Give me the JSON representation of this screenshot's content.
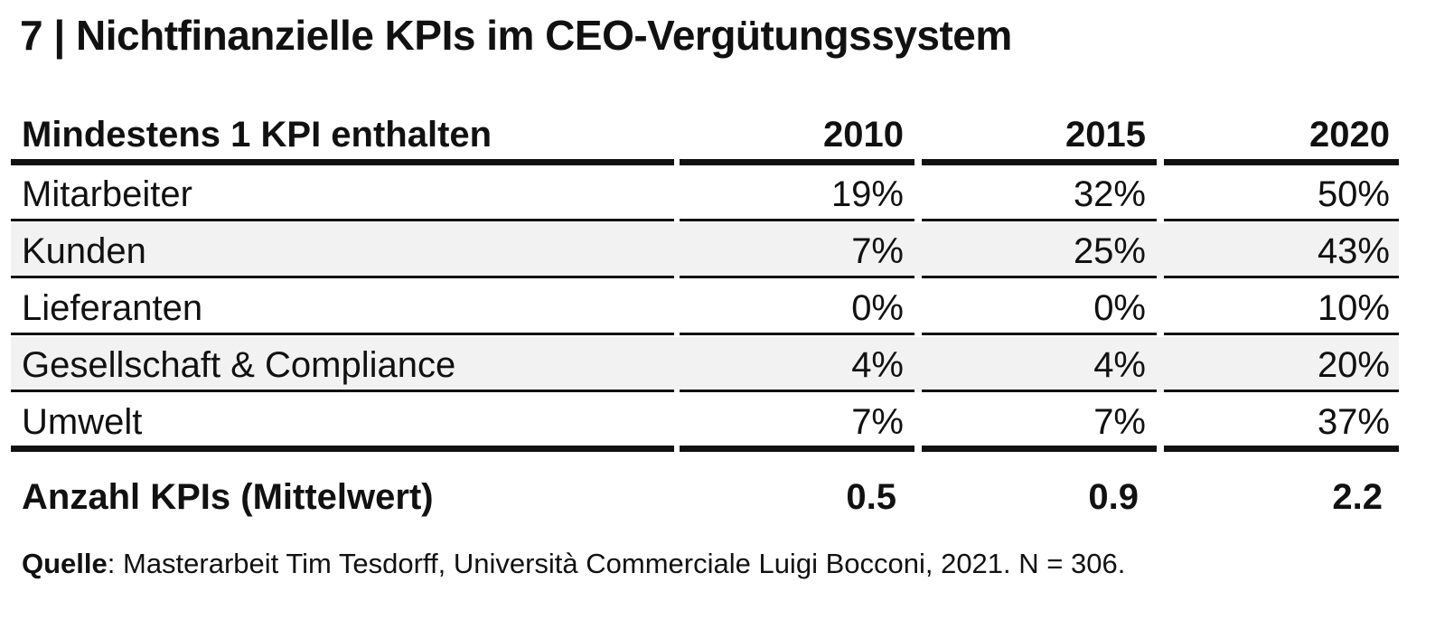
{
  "title": "7 | Nichtfinanzielle KPIs im CEO-Vergütungssystem",
  "chart_data": {
    "type": "table",
    "title": "7 | Nichtfinanzielle KPIs im CEO-Vergütungssystem",
    "row_header": "Mindestens 1 KPI enthalten",
    "columns": [
      "2010",
      "2015",
      "2020"
    ],
    "rows": [
      {
        "label": "Mitarbeiter",
        "values": [
          "19%",
          "32%",
          "50%"
        ]
      },
      {
        "label": "Kunden",
        "values": [
          "7%",
          "25%",
          "43%"
        ]
      },
      {
        "label": "Lieferanten",
        "values": [
          "0%",
          "0%",
          "10%"
        ]
      },
      {
        "label": "Gesellschaft & Compliance",
        "values": [
          "4%",
          "4%",
          "20%"
        ]
      },
      {
        "label": "Umwelt",
        "values": [
          "7%",
          "7%",
          "37%"
        ]
      }
    ],
    "summary": {
      "label": "Anzahl KPIs (Mittelwert)",
      "values": [
        "0.5",
        "0.9",
        "2.2"
      ]
    },
    "shaded_rows": [
      1,
      3
    ],
    "colors": {
      "text": "#111111",
      "rule": "#111111",
      "shade": "#f2f2f2"
    }
  },
  "source": {
    "label": "Quelle",
    "text": ": Masterarbeit Tim Tesdorff, Università Commerciale Luigi Bocconi, 2021. N = 306."
  }
}
